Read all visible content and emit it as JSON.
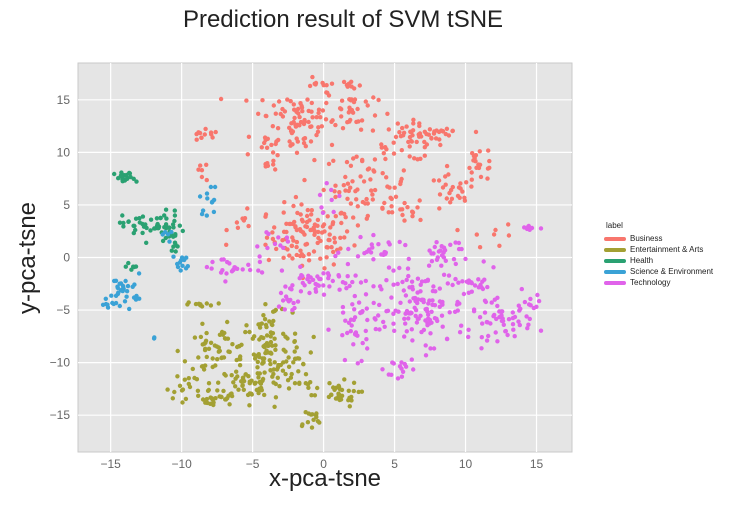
{
  "chart_data": {
    "type": "scatter",
    "title": "Prediction result of SVM tSNE",
    "xlabel": "x-pca-tsne",
    "ylabel": "y-pca-tsne",
    "xlim": [
      -17.3,
      17.5
    ],
    "ylim": [
      -18.5,
      18.5
    ],
    "xticks": [
      -15,
      -10,
      -5,
      0,
      5,
      10,
      15
    ],
    "yticks": [
      -15,
      -10,
      -5,
      0,
      5,
      10,
      15
    ],
    "grid": true,
    "legend": {
      "title": "label",
      "placement": "right"
    },
    "series": [
      {
        "name": "Business",
        "color": "#f8766d",
        "clusters": [
          {
            "cx": -1,
            "cy": 2,
            "rx": 2.5,
            "ry": 2.5,
            "n": 110
          },
          {
            "cx": -2,
            "cy": 13,
            "rx": 2.5,
            "ry": 3,
            "n": 90
          },
          {
            "cx": 2,
            "cy": 14,
            "rx": 1.5,
            "ry": 2,
            "n": 35
          },
          {
            "cx": 3,
            "cy": 7,
            "rx": 2.5,
            "ry": 2.5,
            "n": 60
          },
          {
            "cx": 6,
            "cy": 11,
            "rx": 2,
            "ry": 1.5,
            "n": 45
          },
          {
            "cx": 8,
            "cy": 12,
            "rx": 1.5,
            "ry": 1,
            "n": 20
          },
          {
            "cx": 11,
            "cy": 9,
            "rx": 1,
            "ry": 1.5,
            "n": 20
          },
          {
            "cx": 9,
            "cy": 6,
            "rx": 1.5,
            "ry": 1.5,
            "n": 25
          },
          {
            "cx": 5.5,
            "cy": 4.5,
            "rx": 1.5,
            "ry": 1,
            "n": 20
          },
          {
            "cx": -8.5,
            "cy": 11.5,
            "rx": 1,
            "ry": 0.5,
            "n": 12
          },
          {
            "cx": -8.5,
            "cy": 8,
            "rx": 0.5,
            "ry": 1,
            "n": 6
          },
          {
            "cx": -5.5,
            "cy": 3.5,
            "rx": 1,
            "ry": 1.5,
            "n": 10
          },
          {
            "cx": 0,
            "cy": 16.5,
            "rx": 1,
            "ry": 0.3,
            "n": 8
          },
          {
            "cx": 12,
            "cy": 2,
            "rx": 1.5,
            "ry": 1,
            "n": 8
          },
          {
            "cx": 2,
            "cy": 16.5,
            "rx": 0.6,
            "ry": 0.3,
            "n": 6
          },
          {
            "cx": -4,
            "cy": 10,
            "rx": 1,
            "ry": 1.5,
            "n": 12
          }
        ]
      },
      {
        "name": "Entertainment & Arts",
        "color": "#a3a033",
        "clusters": [
          {
            "cx": -7.5,
            "cy": -9,
            "rx": 2,
            "ry": 2,
            "n": 60
          },
          {
            "cx": -4,
            "cy": -9.5,
            "rx": 1.5,
            "ry": 3.5,
            "n": 80
          },
          {
            "cx": -5,
            "cy": -12,
            "rx": 2,
            "ry": 1.2,
            "n": 45
          },
          {
            "cx": -8,
            "cy": -13.5,
            "rx": 1.5,
            "ry": 0.8,
            "n": 25
          },
          {
            "cx": -9.5,
            "cy": -12,
            "rx": 1,
            "ry": 0.8,
            "n": 12
          },
          {
            "cx": -2,
            "cy": -8.5,
            "rx": 1,
            "ry": 2,
            "n": 20
          },
          {
            "cx": -1,
            "cy": -15.5,
            "rx": 0.8,
            "ry": 1,
            "n": 14
          },
          {
            "cx": 1,
            "cy": -13,
            "rx": 1.2,
            "ry": 1,
            "n": 30
          },
          {
            "cx": -1.5,
            "cy": -12,
            "rx": 1,
            "ry": 1,
            "n": 12
          },
          {
            "cx": -8.5,
            "cy": -4.5,
            "rx": 1,
            "ry": 0.2,
            "n": 10
          },
          {
            "cx": -4,
            "cy": -5.5,
            "rx": 0.8,
            "ry": 1,
            "n": 10
          }
        ]
      },
      {
        "name": "Health",
        "color": "#2aa172",
        "clusters": [
          {
            "cx": -12,
            "cy": 3,
            "rx": 1.8,
            "ry": 1.2,
            "n": 55
          },
          {
            "cx": -10.5,
            "cy": 1.5,
            "rx": 0.6,
            "ry": 1,
            "n": 10
          },
          {
            "cx": -14,
            "cy": 7.5,
            "rx": 0.6,
            "ry": 0.5,
            "n": 20
          },
          {
            "cx": -13.5,
            "cy": -1,
            "rx": 0.5,
            "ry": 0.5,
            "n": 6
          }
        ]
      },
      {
        "name": "Science & Environment",
        "color": "#3aa2d6",
        "clusters": [
          {
            "cx": -14,
            "cy": -3,
            "rx": 1,
            "ry": 1.2,
            "n": 30
          },
          {
            "cx": -15,
            "cy": -4.5,
            "rx": 0.5,
            "ry": 0.2,
            "n": 8
          },
          {
            "cx": -10,
            "cy": -0.5,
            "rx": 0.5,
            "ry": 0.8,
            "n": 12
          },
          {
            "cx": -8,
            "cy": 5.5,
            "rx": 0.6,
            "ry": 1.2,
            "n": 12
          },
          {
            "cx": -11,
            "cy": 2,
            "rx": 0.5,
            "ry": 0.8,
            "n": 5
          },
          {
            "cx": -12,
            "cy": -7.5,
            "rx": 0.3,
            "ry": 0.2,
            "n": 2
          }
        ]
      },
      {
        "name": "Technology",
        "color": "#e063ea",
        "clusters": [
          {
            "cx": 7,
            "cy": -5,
            "rx": 2.5,
            "ry": 3,
            "n": 120
          },
          {
            "cx": 12.5,
            "cy": -6,
            "rx": 1.8,
            "ry": 1.5,
            "n": 50
          },
          {
            "cx": 2.5,
            "cy": -6.5,
            "rx": 1.5,
            "ry": 2.5,
            "n": 40
          },
          {
            "cx": 0,
            "cy": -2.5,
            "rx": 2.5,
            "ry": 1.2,
            "n": 50
          },
          {
            "cx": 8.5,
            "cy": 0.5,
            "rx": 1.5,
            "ry": 1.5,
            "n": 30
          },
          {
            "cx": 4,
            "cy": 0.5,
            "rx": 2,
            "ry": 1,
            "n": 25
          },
          {
            "cx": 10.5,
            "cy": -3,
            "rx": 1.5,
            "ry": 1.5,
            "n": 25
          },
          {
            "cx": -6.5,
            "cy": -1,
            "rx": 2,
            "ry": 1,
            "n": 25
          },
          {
            "cx": -2.5,
            "cy": -4.5,
            "rx": 0.8,
            "ry": 1,
            "n": 12
          },
          {
            "cx": 14.5,
            "cy": 2.8,
            "rx": 0.6,
            "ry": 0.3,
            "n": 8
          },
          {
            "cx": 5.5,
            "cy": -10.5,
            "rx": 1,
            "ry": 1.2,
            "n": 12
          },
          {
            "cx": -3.5,
            "cy": 1.5,
            "rx": 0.8,
            "ry": 0.8,
            "n": 10
          },
          {
            "cx": 14.5,
            "cy": -4.5,
            "rx": 0.6,
            "ry": 1,
            "n": 10
          },
          {
            "cx": 0.5,
            "cy": 5.5,
            "rx": 1,
            "ry": 1,
            "n": 8
          }
        ]
      }
    ]
  }
}
